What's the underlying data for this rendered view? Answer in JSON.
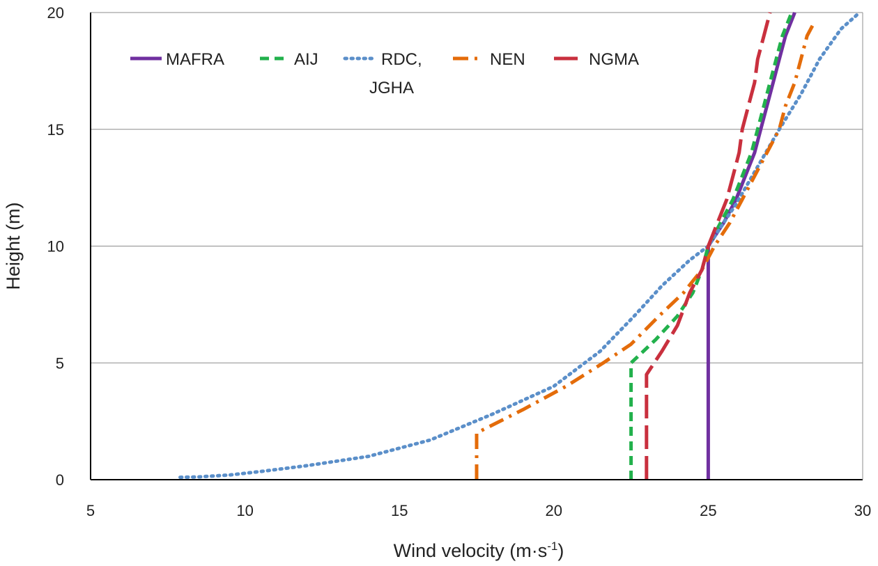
{
  "chart_data": {
    "type": "line",
    "xlabel": "Wind velocity (m·s",
    "xlabel_sup": "-1",
    "xlabel_close": ")",
    "ylabel": "Height (m)",
    "xlim": [
      5,
      30
    ],
    "ylim": [
      0,
      20
    ],
    "x_ticks": [
      "5",
      "10",
      "15",
      "20",
      "25",
      "30"
    ],
    "y_ticks": [
      "0",
      "5",
      "10",
      "15",
      "20"
    ],
    "grid": "horizontal",
    "legend_position": "top-left",
    "series": [
      {
        "name": "MAFRA",
        "color": "#7030a0",
        "dash": "solid",
        "points": [
          [
            25.0,
            0
          ],
          [
            25.0,
            10
          ],
          [
            25.5,
            11
          ],
          [
            25.9,
            12
          ],
          [
            26.2,
            13
          ],
          [
            26.5,
            14
          ],
          [
            26.7,
            15
          ],
          [
            26.9,
            16
          ],
          [
            27.1,
            17
          ],
          [
            27.3,
            18
          ],
          [
            27.5,
            19
          ],
          [
            27.8,
            20
          ]
        ]
      },
      {
        "name": "AIJ",
        "color": "#22b14c",
        "dash": "dashed",
        "points": [
          [
            22.5,
            0
          ],
          [
            22.5,
            5
          ],
          [
            23.3,
            6
          ],
          [
            24.0,
            7
          ],
          [
            24.5,
            8
          ],
          [
            24.8,
            9
          ],
          [
            25.0,
            10
          ],
          [
            25.4,
            11
          ],
          [
            25.8,
            12
          ],
          [
            26.1,
            13
          ],
          [
            26.4,
            14
          ],
          [
            26.6,
            15
          ],
          [
            26.8,
            16
          ],
          [
            27.0,
            17
          ],
          [
            27.2,
            18
          ],
          [
            27.4,
            19
          ],
          [
            27.7,
            20
          ]
        ]
      },
      {
        "name": "RDC, JGHA",
        "color": "#5b8fc9",
        "dash": "dotted",
        "points": [
          [
            7.9,
            0.1
          ],
          [
            8.5,
            0.12
          ],
          [
            9.5,
            0.2
          ],
          [
            10.5,
            0.35
          ],
          [
            12.0,
            0.6
          ],
          [
            14.0,
            1.0
          ],
          [
            16.0,
            1.7
          ],
          [
            18.0,
            2.8
          ],
          [
            20.0,
            4.0
          ],
          [
            21.5,
            5.5
          ],
          [
            22.6,
            7.0
          ],
          [
            23.5,
            8.3
          ],
          [
            24.4,
            9.4
          ],
          [
            25.0,
            10.0
          ],
          [
            25.9,
            11.8
          ],
          [
            26.6,
            13.4
          ],
          [
            27.3,
            15.0
          ],
          [
            28.0,
            16.5
          ],
          [
            28.6,
            18.0
          ],
          [
            29.3,
            19.3
          ],
          [
            29.9,
            20.0
          ]
        ]
      },
      {
        "name": "NEN",
        "color": "#e46c0a",
        "dash": "dashdot",
        "points": [
          [
            17.5,
            0
          ],
          [
            17.5,
            2
          ],
          [
            19.0,
            3
          ],
          [
            20.4,
            4
          ],
          [
            21.6,
            5
          ],
          [
            22.5,
            5.8
          ],
          [
            23.4,
            7
          ],
          [
            24.2,
            8
          ],
          [
            24.8,
            9
          ],
          [
            25.2,
            10
          ],
          [
            25.7,
            11
          ],
          [
            26.1,
            12
          ],
          [
            26.5,
            13
          ],
          [
            26.9,
            14
          ],
          [
            27.3,
            15
          ],
          [
            27.5,
            16
          ],
          [
            27.8,
            17
          ],
          [
            28.0,
            18
          ],
          [
            28.2,
            19
          ],
          [
            28.4,
            19.5
          ]
        ]
      },
      {
        "name": "NGMA",
        "color": "#c9303e",
        "dash": "longdash",
        "points": [
          [
            23.0,
            0
          ],
          [
            23.0,
            4.5
          ],
          [
            23.5,
            5.5
          ],
          [
            24.0,
            6.6
          ],
          [
            24.4,
            8
          ],
          [
            24.8,
            9
          ],
          [
            25.0,
            10
          ],
          [
            25.3,
            11
          ],
          [
            25.6,
            12
          ],
          [
            25.8,
            13
          ],
          [
            26.0,
            14
          ],
          [
            26.1,
            15
          ],
          [
            26.3,
            16
          ],
          [
            26.5,
            17
          ],
          [
            26.6,
            18
          ],
          [
            26.8,
            19
          ],
          [
            27.0,
            20
          ]
        ]
      }
    ],
    "legend": [
      {
        "label": "MAFRA",
        "color": "#7030a0",
        "dash": "solid"
      },
      {
        "label": "AIJ",
        "color": "#22b14c",
        "dash": "dashed"
      },
      {
        "label": "RDC,",
        "label2": "JGHA",
        "color": "#5b8fc9",
        "dash": "dotted"
      },
      {
        "label": "NEN",
        "color": "#e46c0a",
        "dash": "dashdot"
      },
      {
        "label": "NGMA",
        "color": "#c9303e",
        "dash": "longdash"
      }
    ]
  }
}
